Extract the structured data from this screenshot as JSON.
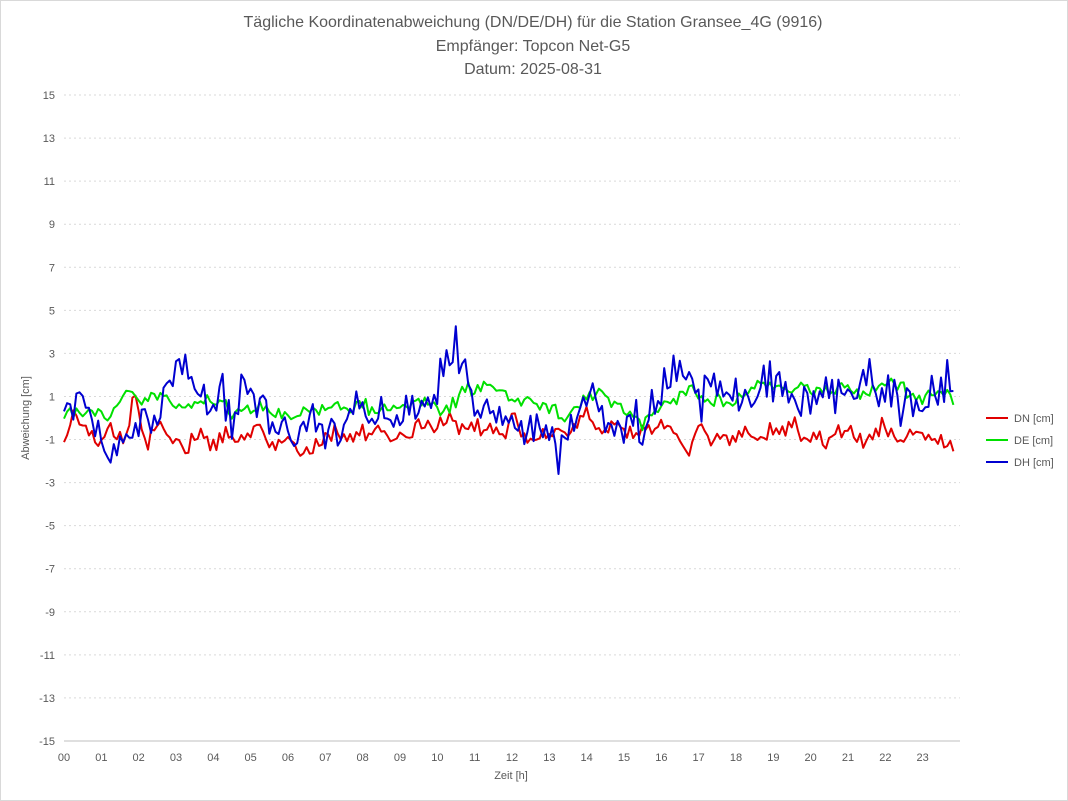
{
  "chart_data": {
    "type": "line",
    "title": "Tägliche Koordinatenabweichung (DN/DE/DH) für die Station Gransee_4G (9916)",
    "subtitle1": "Empfänger: Topcon Net-G5",
    "subtitle2": "Datum: 2025-08-31",
    "xlabel": "Zeit [h]",
    "ylabel": "Abweichung [cm]",
    "xlim": [
      0,
      24
    ],
    "ylim": [
      -15,
      15
    ],
    "x_ticks": [
      "00",
      "01",
      "02",
      "03",
      "04",
      "05",
      "06",
      "07",
      "08",
      "09",
      "10",
      "11",
      "12",
      "13",
      "14",
      "15",
      "16",
      "17",
      "18",
      "19",
      "20",
      "21",
      "22",
      "23"
    ],
    "y_ticks": [
      15,
      13,
      11,
      9,
      7,
      5,
      3,
      1,
      -1,
      -3,
      -5,
      -7,
      -9,
      -11,
      -13,
      -15
    ],
    "grid": true,
    "legend_position": "right",
    "sample_interval_h": 0.0833,
    "series": [
      {
        "name": "DN [cm]",
        "color": "#e00000",
        "anchors": [
          [
            0,
            -1.1
          ],
          [
            0.3,
            0.3
          ],
          [
            0.6,
            -0.6
          ],
          [
            0.9,
            -1.5
          ],
          [
            1.2,
            -0.4
          ],
          [
            1.6,
            -0.9
          ],
          [
            1.9,
            0.9
          ],
          [
            2.2,
            -1.3
          ],
          [
            2.5,
            -0.4
          ],
          [
            2.9,
            -0.9
          ],
          [
            3.2,
            -1.6
          ],
          [
            3.6,
            -0.6
          ],
          [
            3.9,
            -1.3
          ],
          [
            4.3,
            -0.6
          ],
          [
            4.6,
            -1.1
          ],
          [
            4.9,
            -1.0
          ],
          [
            5.2,
            -0.2
          ],
          [
            5.5,
            -1.6
          ],
          [
            5.8,
            -1.1
          ],
          [
            6.1,
            -1.0
          ],
          [
            6.4,
            -1.6
          ],
          [
            6.7,
            -1.4
          ],
          [
            7.0,
            -0.8
          ],
          [
            7.3,
            -0.6
          ],
          [
            7.6,
            -1.1
          ],
          [
            7.9,
            -0.7
          ],
          [
            8.2,
            -0.5
          ],
          [
            8.5,
            -0.4
          ],
          [
            8.8,
            -0.9
          ],
          [
            9.1,
            -1.0
          ],
          [
            9.4,
            -0.4
          ],
          [
            9.7,
            -0.3
          ],
          [
            10.0,
            -0.6
          ],
          [
            10.3,
            -0.1
          ],
          [
            10.6,
            -0.6
          ],
          [
            11.0,
            -0.2
          ],
          [
            11.3,
            -0.5
          ],
          [
            11.7,
            -0.9
          ],
          [
            12.0,
            -0.1
          ],
          [
            12.4,
            -0.9
          ],
          [
            12.8,
            -0.6
          ],
          [
            13.2,
            -0.4
          ],
          [
            13.6,
            -0.8
          ],
          [
            14.0,
            0.4
          ],
          [
            14.4,
            -0.7
          ],
          [
            14.8,
            -0.1
          ],
          [
            15.1,
            -1.0
          ],
          [
            15.4,
            -0.7
          ],
          [
            15.8,
            -0.2
          ],
          [
            16.1,
            -0.5
          ],
          [
            16.4,
            -1.0
          ],
          [
            16.7,
            -1.6
          ],
          [
            17.0,
            -0.4
          ],
          [
            17.3,
            -0.9
          ],
          [
            17.6,
            -0.9
          ],
          [
            18.0,
            -1.0
          ],
          [
            18.3,
            -0.6
          ],
          [
            18.6,
            -1.2
          ],
          [
            18.9,
            -0.6
          ],
          [
            19.2,
            -0.9
          ],
          [
            19.5,
            -0.4
          ],
          [
            19.8,
            -0.9
          ],
          [
            20.1,
            -0.8
          ],
          [
            20.4,
            -1.2
          ],
          [
            20.7,
            -0.4
          ],
          [
            21.0,
            -0.6
          ],
          [
            21.3,
            -1.1
          ],
          [
            21.6,
            -0.7
          ],
          [
            21.9,
            -0.3
          ],
          [
            22.2,
            -0.8
          ],
          [
            22.5,
            -1.1
          ],
          [
            22.8,
            -0.4
          ],
          [
            23.1,
            -0.8
          ],
          [
            23.4,
            -1.2
          ],
          [
            23.7,
            -1.4
          ],
          [
            23.85,
            -1.3
          ]
        ]
      },
      {
        "name": "DE [cm]",
        "color": "#00e000",
        "anchors": [
          [
            0,
            0.3
          ],
          [
            0.3,
            0.3
          ],
          [
            0.6,
            0.4
          ],
          [
            0.9,
            0.3
          ],
          [
            1.2,
            0.0
          ],
          [
            1.4,
            0.7
          ],
          [
            1.7,
            1.2
          ],
          [
            2.0,
            0.6
          ],
          [
            2.3,
            0.9
          ],
          [
            2.6,
            1.2
          ],
          [
            2.9,
            0.7
          ],
          [
            3.2,
            0.6
          ],
          [
            3.5,
            0.6
          ],
          [
            3.8,
            1.0
          ],
          [
            4.1,
            0.7
          ],
          [
            4.4,
            0.3
          ],
          [
            4.7,
            0.4
          ],
          [
            5.0,
            0.3
          ],
          [
            5.3,
            0.6
          ],
          [
            5.6,
            0.2
          ],
          [
            5.9,
            0.1
          ],
          [
            6.2,
            -0.1
          ],
          [
            6.5,
            0.4
          ],
          [
            6.8,
            0.3
          ],
          [
            7.1,
            0.6
          ],
          [
            7.4,
            0.5
          ],
          [
            7.7,
            0.5
          ],
          [
            8.0,
            0.7
          ],
          [
            8.3,
            0.2
          ],
          [
            8.6,
            0.4
          ],
          [
            8.9,
            0.6
          ],
          [
            9.2,
            0.6
          ],
          [
            9.5,
            0.9
          ],
          [
            9.8,
            0.6
          ],
          [
            10.1,
            0.4
          ],
          [
            10.4,
            0.7
          ],
          [
            10.7,
            1.2
          ],
          [
            11.0,
            1.4
          ],
          [
            11.3,
            1.5
          ],
          [
            11.6,
            1.3
          ],
          [
            11.9,
            0.9
          ],
          [
            12.2,
            0.8
          ],
          [
            12.5,
            1.0
          ],
          [
            12.8,
            0.6
          ],
          [
            13.1,
            0.6
          ],
          [
            13.4,
            -0.2
          ],
          [
            13.7,
            0.4
          ],
          [
            14.0,
            0.9
          ],
          [
            14.3,
            1.4
          ],
          [
            14.6,
            0.9
          ],
          [
            14.9,
            0.5
          ],
          [
            15.2,
            0.3
          ],
          [
            15.5,
            -0.3
          ],
          [
            15.8,
            0.2
          ],
          [
            16.1,
            0.6
          ],
          [
            16.4,
            0.8
          ],
          [
            16.7,
            1.4
          ],
          [
            17.0,
            1.0
          ],
          [
            17.3,
            0.9
          ],
          [
            17.6,
            0.8
          ],
          [
            17.9,
            0.6
          ],
          [
            18.2,
            1.1
          ],
          [
            18.5,
            1.3
          ],
          [
            18.8,
            1.5
          ],
          [
            19.1,
            1.6
          ],
          [
            19.4,
            1.4
          ],
          [
            19.7,
            1.5
          ],
          [
            20.0,
            1.2
          ],
          [
            20.3,
            1.3
          ],
          [
            20.6,
            1.3
          ],
          [
            20.9,
            1.4
          ],
          [
            21.2,
            1.2
          ],
          [
            21.5,
            1.1
          ],
          [
            21.8,
            1.3
          ],
          [
            22.1,
            1.7
          ],
          [
            22.4,
            1.6
          ],
          [
            22.7,
            1.0
          ],
          [
            23.0,
            0.8
          ],
          [
            23.3,
            1.1
          ],
          [
            23.6,
            1.2
          ],
          [
            23.85,
            0.9
          ]
        ]
      },
      {
        "name": "DH [cm]",
        "color": "#0000d0",
        "anchors": [
          [
            0,
            0.2
          ],
          [
            0.3,
            0.8
          ],
          [
            0.6,
            0.3
          ],
          [
            0.9,
            -0.7
          ],
          [
            1.2,
            -1.4
          ],
          [
            1.5,
            -0.9
          ],
          [
            1.8,
            -1.5
          ],
          [
            2.1,
            0.5
          ],
          [
            2.4,
            -0.3
          ],
          [
            2.7,
            0.8
          ],
          [
            3.0,
            2.2
          ],
          [
            3.3,
            2.6
          ],
          [
            3.6,
            1.4
          ],
          [
            3.9,
            0.2
          ],
          [
            4.2,
            0.8
          ],
          [
            4.5,
            -0.4
          ],
          [
            4.8,
            1.7
          ],
          [
            5.1,
            0.5
          ],
          [
            5.4,
            0.2
          ],
          [
            5.7,
            -0.7
          ],
          [
            6.0,
            -0.5
          ],
          [
            6.3,
            -0.8
          ],
          [
            6.6,
            0.6
          ],
          [
            6.9,
            -0.2
          ],
          [
            7.2,
            -0.4
          ],
          [
            7.5,
            -0.7
          ],
          [
            7.8,
            0.6
          ],
          [
            8.1,
            0.4
          ],
          [
            8.4,
            -0.5
          ],
          [
            8.7,
            -0.3
          ],
          [
            9.0,
            0.4
          ],
          [
            9.3,
            0.7
          ],
          [
            9.6,
            0.7
          ],
          [
            9.9,
            1.1
          ],
          [
            10.2,
            2.8
          ],
          [
            10.5,
            3.2
          ],
          [
            10.8,
            1.6
          ],
          [
            11.1,
            0.8
          ],
          [
            11.4,
            -0.4
          ],
          [
            11.7,
            -0.2
          ],
          [
            12.0,
            0.1
          ],
          [
            12.3,
            -0.5
          ],
          [
            12.6,
            -0.9
          ],
          [
            12.9,
            -1.2
          ],
          [
            13.2,
            -1.7
          ],
          [
            13.5,
            -0.7
          ],
          [
            13.8,
            0.3
          ],
          [
            14.1,
            1.2
          ],
          [
            14.4,
            0.2
          ],
          [
            14.7,
            -0.3
          ],
          [
            15.0,
            -0.9
          ],
          [
            15.3,
            0.2
          ],
          [
            15.6,
            -0.2
          ],
          [
            15.9,
            0.5
          ],
          [
            16.2,
            1.6
          ],
          [
            16.5,
            1.9
          ],
          [
            16.8,
            1.6
          ],
          [
            17.1,
            1.2
          ],
          [
            17.4,
            1.4
          ],
          [
            17.7,
            1.0
          ],
          [
            18.0,
            0.3
          ],
          [
            18.3,
            0.7
          ],
          [
            18.6,
            1.5
          ],
          [
            18.9,
            1.6
          ],
          [
            19.2,
            1.8
          ],
          [
            19.5,
            0.6
          ],
          [
            19.8,
            0.4
          ],
          [
            20.1,
            1.3
          ],
          [
            20.4,
            1.2
          ],
          [
            20.7,
            1.5
          ],
          [
            21.0,
            1.1
          ],
          [
            21.3,
            1.6
          ],
          [
            21.6,
            1.7
          ],
          [
            21.9,
            0.7
          ],
          [
            22.2,
            1.1
          ],
          [
            22.5,
            0.6
          ],
          [
            22.8,
            0.7
          ],
          [
            23.1,
            1.0
          ],
          [
            23.4,
            1.2
          ],
          [
            23.7,
            1.6
          ],
          [
            23.85,
            0.8
          ]
        ]
      }
    ]
  }
}
